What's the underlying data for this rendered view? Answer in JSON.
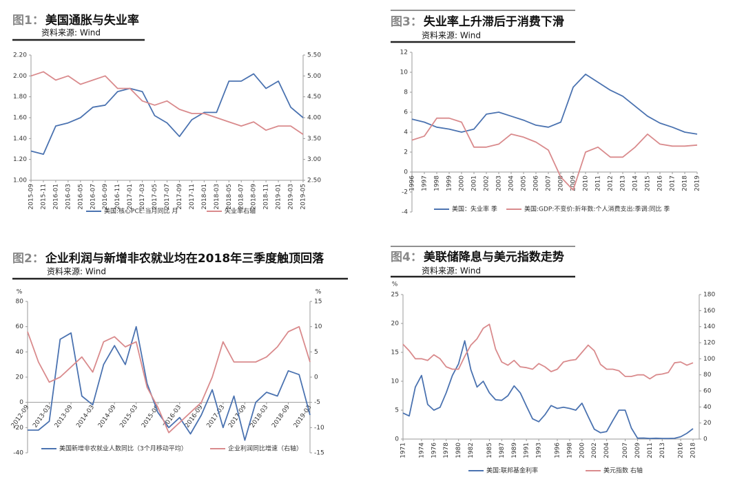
{
  "chart_data": [
    {
      "type": "line",
      "figure": "图1：",
      "title": "美国通胀与失业率",
      "source": "资料来源: Wind",
      "categories": [
        "2015-09",
        "2015-11",
        "2016-01",
        "2016-03",
        "2016-05",
        "2016-07",
        "2016-09",
        "2016-11",
        "2017-01",
        "2017-03",
        "2017-05",
        "2017-07",
        "2017-09",
        "2017-11",
        "2018-01",
        "2018-03",
        "2018-05",
        "2018-07",
        "2018-09",
        "2018-11",
        "2019-01",
        "2019-03",
        "2019-05"
      ],
      "series": [
        {
          "name": "美国:核心PCE:当月同比 月",
          "color": "#4a72b0",
          "values": [
            1.28,
            1.25,
            1.52,
            1.55,
            1.6,
            1.7,
            1.72,
            1.85,
            1.88,
            1.85,
            1.62,
            1.55,
            1.42,
            1.58,
            1.65,
            1.65,
            1.95,
            1.95,
            2.02,
            1.88,
            1.95,
            1.7,
            1.6
          ]
        },
        {
          "name": "失业率右轴",
          "color": "#d98a8c",
          "axis": "y2",
          "values": [
            5.0,
            5.1,
            4.9,
            5.0,
            4.8,
            4.9,
            5.0,
            4.7,
            4.7,
            4.4,
            4.3,
            4.4,
            4.2,
            4.1,
            4.1,
            4.0,
            3.9,
            3.8,
            3.9,
            3.7,
            3.8,
            3.8,
            3.6
          ]
        }
      ],
      "ylim": [
        1.0,
        2.2
      ],
      "yticks": [
        {
          "value": 1.0,
          "label": "1.00"
        },
        {
          "value": 1.2,
          "label": "1.20"
        },
        {
          "value": 1.4,
          "label": "1.40"
        },
        {
          "value": 1.6,
          "label": "1.60"
        },
        {
          "value": 1.8,
          "label": "1.80"
        },
        {
          "value": 2.0,
          "label": "2.00"
        },
        {
          "value": 2.2,
          "label": "2.20"
        }
      ],
      "y2lim": [
        2.5,
        5.5
      ],
      "y2ticks": [
        {
          "value": 2.5,
          "label": "2.50"
        },
        {
          "value": 3.0,
          "label": "3.00"
        },
        {
          "value": 3.5,
          "label": "3.50"
        },
        {
          "value": 4.0,
          "label": "4.00"
        },
        {
          "value": 4.5,
          "label": "4.50"
        },
        {
          "value": 5.0,
          "label": "5.00"
        },
        {
          "value": 5.5,
          "label": "5.50"
        }
      ]
    },
    {
      "type": "line",
      "figure": "图3：",
      "title": "失业率上升滞后于消费下滑",
      "source": "资料来源: Wind",
      "categories": [
        "1996",
        "1997",
        "1998",
        "1999",
        "2000",
        "2001",
        "2002",
        "2003",
        "2004",
        "2005",
        "2006",
        "2007",
        "2008",
        "2009",
        "2010",
        "2011",
        "2012",
        "2013",
        "2014",
        "2015",
        "2016",
        "2017",
        "2018",
        "2019"
      ],
      "series": [
        {
          "name": "美国：失业率 季",
          "color": "#4a72b0",
          "values": [
            5.3,
            5.0,
            4.5,
            4.3,
            4.0,
            4.3,
            5.8,
            6.0,
            5.6,
            5.2,
            4.7,
            4.5,
            5.0,
            8.5,
            9.8,
            9.0,
            8.2,
            7.6,
            6.6,
            5.6,
            4.9,
            4.5,
            4.0,
            3.8
          ]
        },
        {
          "name": "美国:GDP:不变价:折年数:个人消费支出:季调:同比 季",
          "color": "#d98a8c",
          "values": [
            3.2,
            3.6,
            5.4,
            5.4,
            5.0,
            2.5,
            2.5,
            2.8,
            3.8,
            3.5,
            3.0,
            2.2,
            -0.5,
            -1.8,
            2.0,
            2.5,
            1.5,
            1.5,
            2.5,
            3.8,
            2.8,
            2.6,
            2.6,
            2.7
          ]
        }
      ],
      "ylim": [
        -4,
        12
      ],
      "yticks": [
        -4,
        -2,
        0,
        2,
        4,
        6,
        8,
        10,
        12
      ]
    },
    {
      "type": "line",
      "figure": "图2：",
      "title": "企业利润与新增非农就业均在2018年三季度触顶回落",
      "source": "资料来源: Wind",
      "y_unit": "%",
      "y2_unit": "%",
      "categories": [
        "2012-09",
        null,
        "2013-03",
        null,
        "2013-09",
        null,
        "2014-03",
        null,
        "2014-09",
        null,
        "2015-03",
        null,
        "2015-09",
        null,
        "2016-03",
        null,
        "2016-09",
        null,
        "2017-03",
        null,
        "2017-09",
        null,
        "2018-03",
        null,
        "2018-09",
        null,
        "2019-03"
      ],
      "series": [
        {
          "name": "美国新增非农就业人数同比（3个月移动平均）",
          "color": "#4a72b0",
          "values": [
            -22,
            -22,
            -15,
            50,
            55,
            5,
            -2,
            30,
            45,
            30,
            60,
            15,
            -8,
            -20,
            -12,
            -25,
            -10,
            10,
            -20,
            5,
            -30,
            0,
            8,
            5,
            25,
            22,
            -10
          ]
        },
        {
          "name": "企业利润同比增速（右轴）",
          "color": "#d98a8c",
          "axis": "y2",
          "values": [
            9,
            3,
            -1,
            0,
            2,
            4,
            1,
            7,
            8,
            6,
            7,
            -2,
            -6,
            -11,
            -9,
            -7,
            -5,
            0,
            7,
            3,
            3,
            3,
            4,
            6,
            9,
            10,
            3
          ]
        }
      ],
      "ylim": [
        -40,
        80
      ],
      "yticks": [
        -40,
        -20,
        0,
        20,
        40,
        60,
        80
      ],
      "y2lim": [
        -15,
        15
      ],
      "y2ticks": [
        -15,
        -10,
        -5,
        0,
        5,
        10,
        15
      ]
    },
    {
      "type": "line",
      "figure": "图4：",
      "title": "美联储降息与美元指数走势",
      "source": "资料来源: Wind",
      "y_unit": "%",
      "x": [
        1971,
        1972,
        1973,
        1974,
        1975,
        1976,
        1977,
        1978,
        1979,
        1980,
        1981,
        1982,
        1983,
        1984,
        1985,
        1986,
        1987,
        1988,
        1989,
        1990,
        1991,
        1992,
        1993,
        1994,
        1995,
        1996,
        1997,
        1998,
        1999,
        2000,
        2001,
        2002,
        2003,
        2004,
        2005,
        2006,
        2007,
        2008,
        2009,
        2010,
        2011,
        2012,
        2013,
        2014,
        2015,
        2016,
        2017,
        2018
      ],
      "xlim": [
        1971,
        2019
      ],
      "xticks": [
        1971,
        1974,
        1976,
        1978,
        1980,
        1982,
        1985,
        1987,
        1989,
        1991,
        1993,
        1996,
        1998,
        2000,
        2002,
        2004,
        2007,
        2009,
        2011,
        2013,
        2016,
        2018
      ],
      "series": [
        {
          "name": "美国:联邦基金利率",
          "color": "#4a72b0",
          "values": [
            4.5,
            4.0,
            9,
            11,
            6,
            5,
            5.5,
            8,
            11,
            13,
            17,
            12,
            9,
            10,
            8,
            6.8,
            6.7,
            7.5,
            9.2,
            8,
            5.7,
            3.5,
            3,
            4.2,
            5.8,
            5.3,
            5.5,
            5.3,
            5,
            6.2,
            3.9,
            1.7,
            1.1,
            1.3,
            3.2,
            5,
            5,
            1.9,
            0.15,
            0.18,
            0.1,
            0.14,
            0.11,
            0.09,
            0.13,
            0.4,
            1.0,
            1.8
          ]
        },
        {
          "name": "美元指数 右轴",
          "color": "#d98a8c",
          "axis": "y2",
          "values": [
            118,
            110,
            100,
            100,
            98,
            105,
            100,
            90,
            87,
            87,
            103,
            117,
            125,
            138,
            143,
            112,
            96,
            92,
            98,
            90,
            89,
            87,
            94,
            90,
            84,
            87,
            96,
            98,
            99,
            108,
            117,
            110,
            93,
            87,
            87,
            85,
            78,
            78,
            80,
            80,
            75,
            80,
            81,
            83,
            95,
            96,
            92,
            95
          ]
        }
      ],
      "ylim": [
        0,
        25
      ],
      "yticks": [
        0,
        5,
        10,
        15,
        20,
        25
      ],
      "y2lim": [
        0,
        180
      ],
      "y2ticks": [
        0,
        20,
        40,
        60,
        80,
        100,
        120,
        140,
        160,
        180
      ]
    }
  ]
}
